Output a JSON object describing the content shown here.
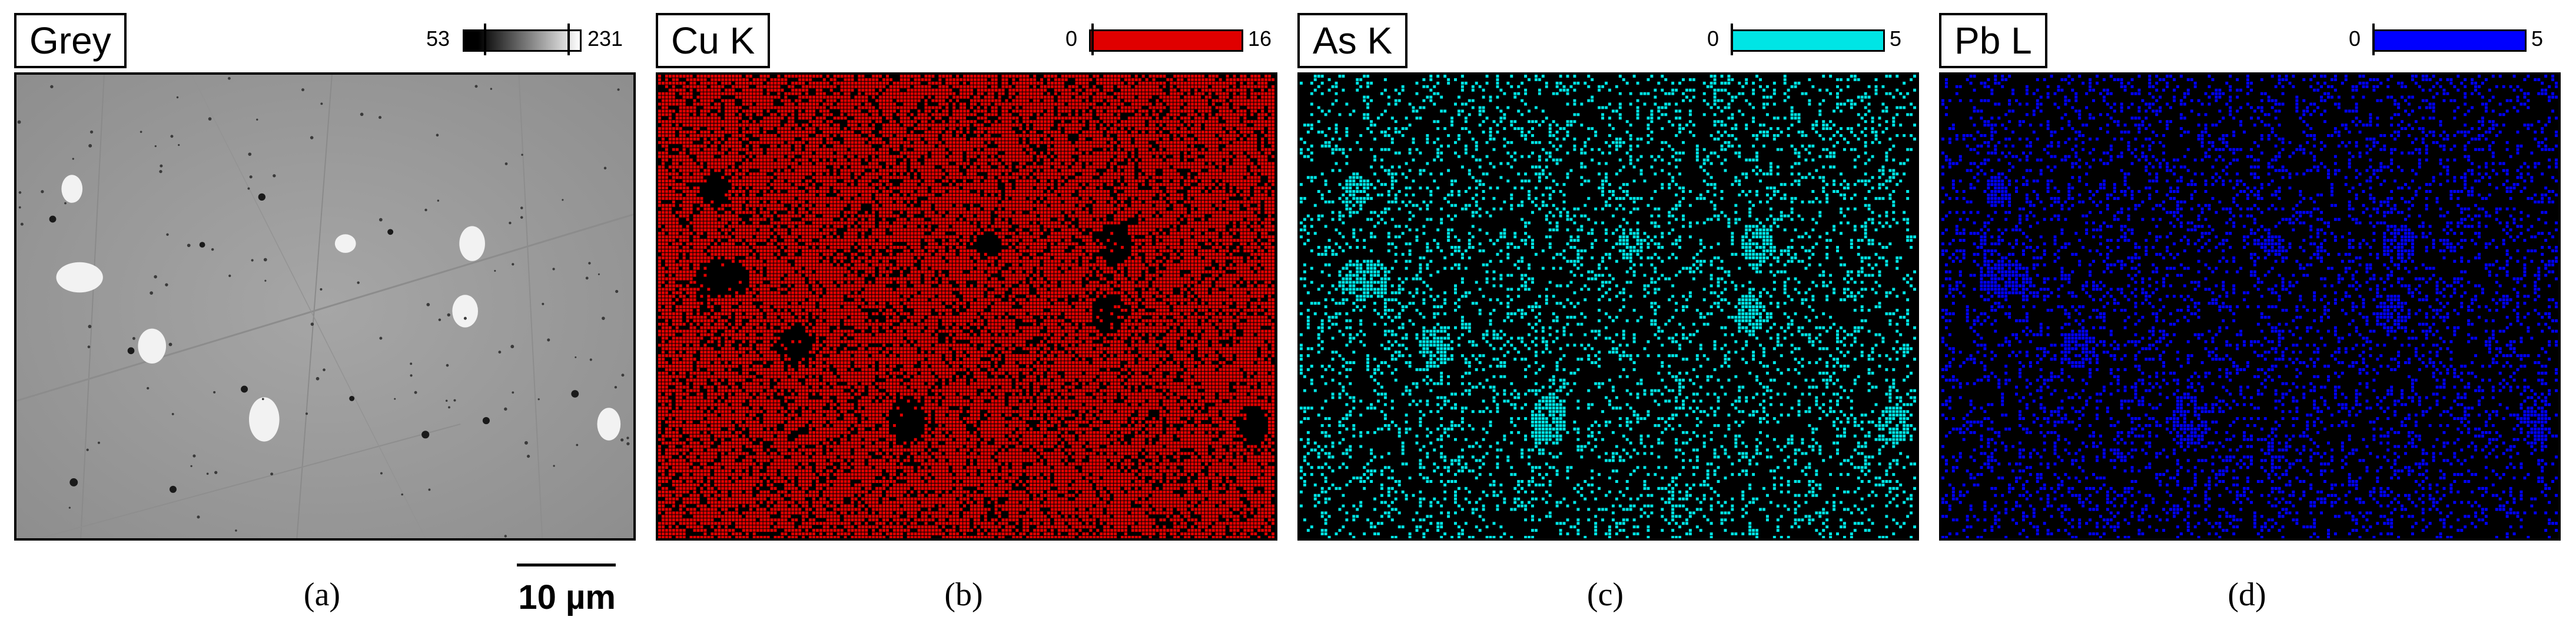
{
  "panels": [
    {
      "title": "Grey",
      "scale_min": "53",
      "scale_max": "231",
      "scale_bar_label": "10 µm",
      "caption": "(a)",
      "color": "#808080",
      "colorbar": "grey-gradient"
    },
    {
      "title": "Cu K",
      "scale_min": "0",
      "scale_max": "16",
      "scale_bar_label": "10 µm",
      "caption": "(b)",
      "color": "#e00000",
      "colorbar": "red"
    },
    {
      "title": "As K",
      "scale_min": "0",
      "scale_max": "5",
      "scale_bar_label": "10 µm",
      "caption": "(c)",
      "color": "#00e5e5",
      "colorbar": "cyan"
    },
    {
      "title": "Pb L",
      "scale_min": "0",
      "scale_max": "5",
      "scale_bar_label": "10 µm",
      "caption": "(d)",
      "color": "#0000ff",
      "colorbar": "blue"
    }
  ]
}
